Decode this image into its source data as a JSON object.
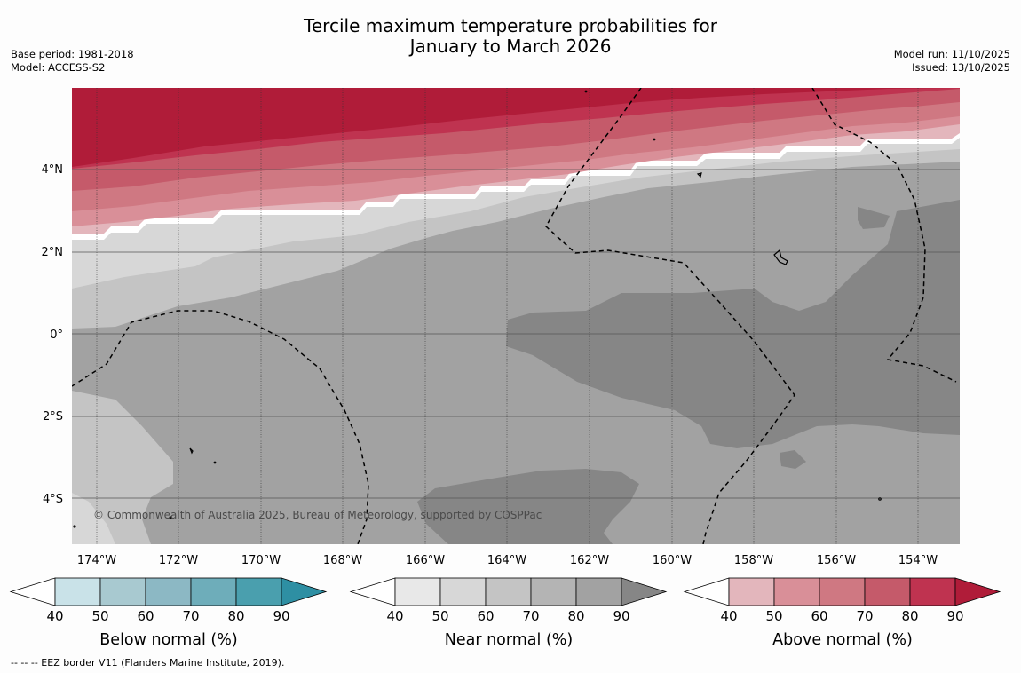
{
  "title_line1": "Tercile maximum temperature probabilities for",
  "title_line2": "January to March 2026",
  "base_period": "Base period: 1981-2018",
  "model": "Model: ACCESS-S2",
  "model_run": "Model run: 11/10/2025",
  "issued": "Issued: 13/10/2025",
  "copyright": "© Commonwealth of Australia 2025, Bureau of Meteorology, supported by COSPPac",
  "footnote": "--  --  -- EEZ border V11 (Flanders Marine Institute, 2019).",
  "lat_labels": [
    "4°N",
    "2°N",
    "0°",
    "2°S",
    "4°S"
  ],
  "lon_labels": [
    "174°W",
    "172°W",
    "170°W",
    "168°W",
    "166°W",
    "164°W",
    "162°W",
    "160°W",
    "158°W",
    "156°W",
    "154°W"
  ],
  "colorbars": [
    {
      "id": "below",
      "title": "Below normal (%)",
      "ticks": [
        "40",
        "50",
        "60",
        "70",
        "80",
        "90"
      ],
      "colors": [
        "#ffffff",
        "#c9e2e8",
        "#a8c9d0",
        "#8cb8c4",
        "#6eadba",
        "#4a9fae",
        "#2e8fa3"
      ]
    },
    {
      "id": "near",
      "title": "Near normal (%)",
      "ticks": [
        "40",
        "50",
        "60",
        "70",
        "80",
        "90"
      ],
      "colors": [
        "#ffffff",
        "#e8e8e8",
        "#d7d7d7",
        "#c4c4c4",
        "#b4b4b4",
        "#a2a2a2",
        "#868686"
      ]
    },
    {
      "id": "above",
      "title": "Above normal (%)",
      "ticks": [
        "40",
        "50",
        "60",
        "70",
        "80",
        "90"
      ],
      "colors": [
        "#ffffff",
        "#e3b6bc",
        "#d98f98",
        "#cf7882",
        "#c55a6a",
        "#bf3350",
        "#b01c39"
      ]
    }
  ]
}
